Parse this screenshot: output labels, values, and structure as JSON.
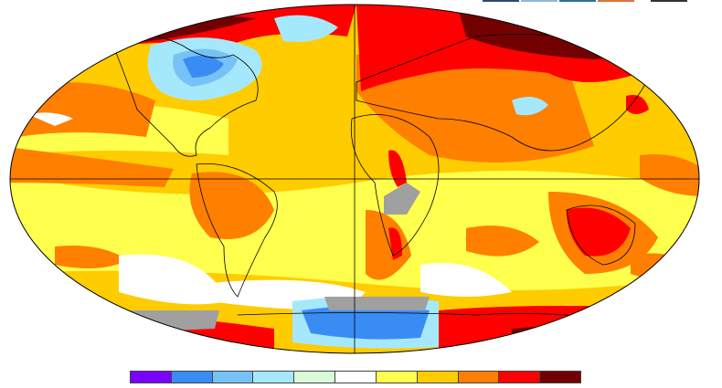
{
  "top_bars": [
    "#2f4a73",
    "#8fb8dc",
    "#2f6f99",
    "#e0703a",
    "#333333"
  ],
  "colorbar": {
    "colors": [
      "#7b00ff",
      "#3a8cf5",
      "#76c2f7",
      "#a6e8fb",
      "#d9fbd9",
      "#ffffff",
      "#ffff4d",
      "#ffcc00",
      "#ff7f00",
      "#ff0000",
      "#730000"
    ]
  },
  "map": {
    "projection": "Robinson",
    "no_data_color": "#a0a0a0",
    "background_color": "#ffcc00"
  }
}
